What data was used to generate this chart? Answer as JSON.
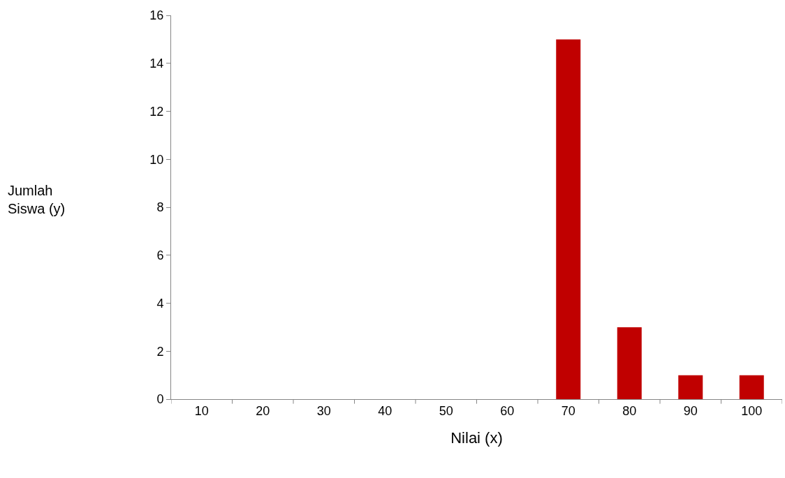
{
  "chart_data": {
    "type": "bar",
    "xlabel": "Nilai (x)",
    "annotations": [
      "Jumlah Siswa (y)"
    ],
    "categories": [
      "10",
      "20",
      "30",
      "40",
      "50",
      "60",
      "70",
      "80",
      "90",
      "100"
    ],
    "values": [
      0,
      0,
      0,
      0,
      0,
      0,
      15,
      3,
      1,
      1
    ],
    "color": "#c00000",
    "ylim": [
      0,
      16
    ],
    "yticks": [
      0,
      2,
      4,
      6,
      8,
      10,
      12,
      14,
      16
    ],
    "legend": false
  }
}
